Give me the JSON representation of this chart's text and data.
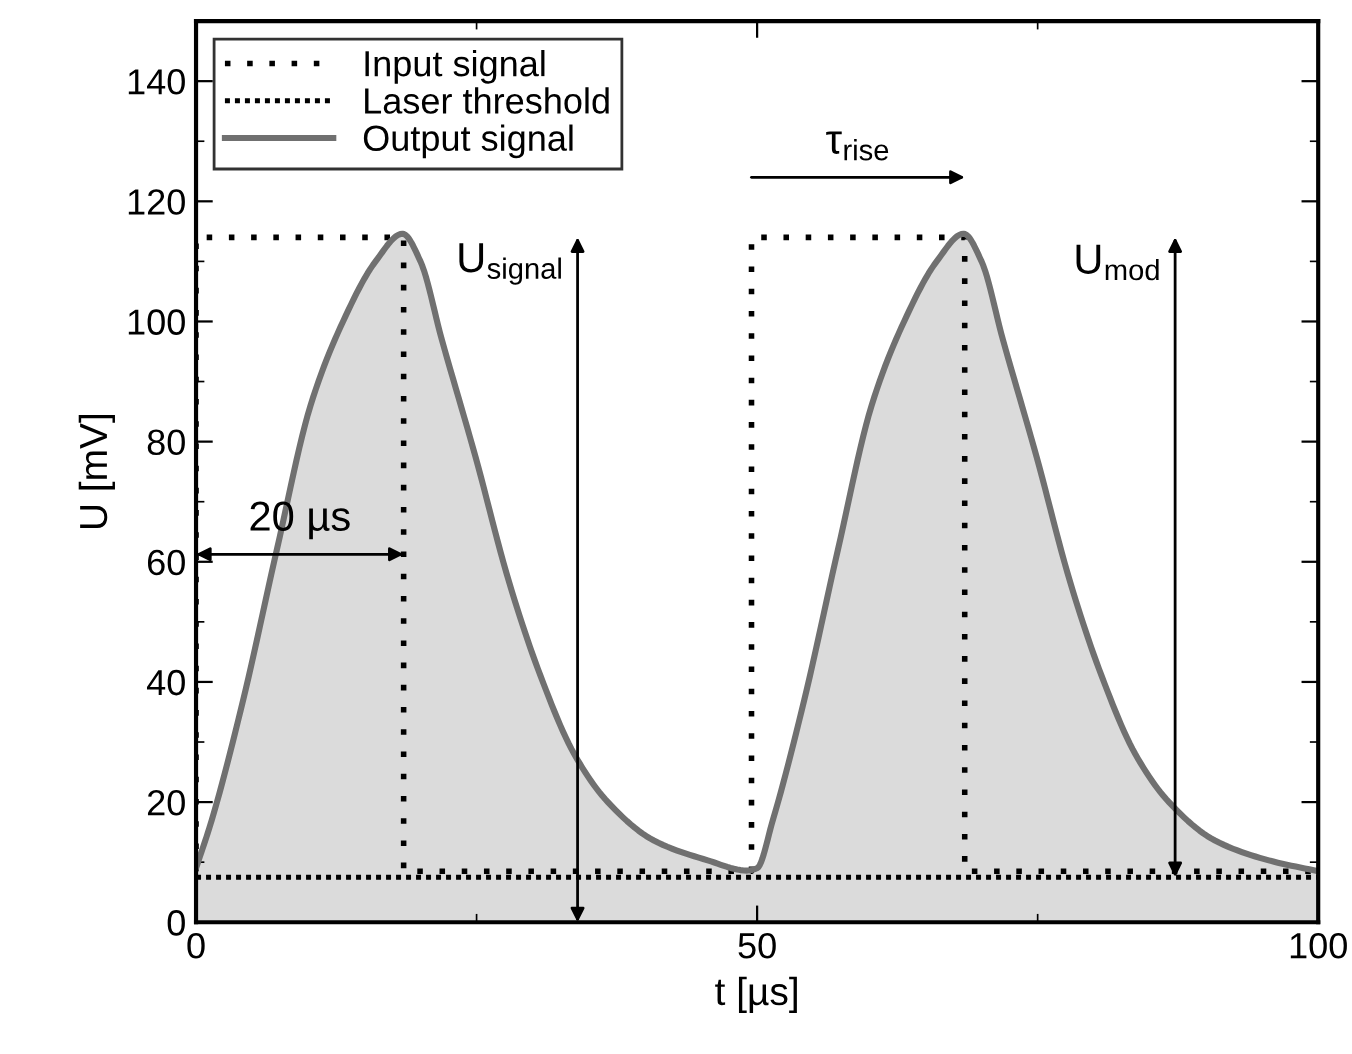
{
  "chart_data": {
    "type": "line",
    "xlabel": "t [µs]",
    "ylabel": "U [mV]",
    "xlim": [
      0,
      100
    ],
    "ylim": [
      0,
      150
    ],
    "xticks": [
      0,
      50,
      100
    ],
    "yticks": [
      0,
      20,
      40,
      60,
      80,
      100,
      120,
      140
    ],
    "grid": false,
    "legend": "top left",
    "marker": "none",
    "series": [
      {
        "name": "Input signal",
        "line_style": "dotted",
        "color": "#000000",
        "x": [
          0,
          0,
          18.5,
          18.5,
          49.5,
          49.5,
          68.5,
          68.5,
          100
        ],
        "values": [
          8.5,
          114,
          114,
          8.5,
          8.5,
          114,
          114,
          8.5,
          8.5
        ]
      },
      {
        "name": "Output signal",
        "type": "area",
        "line_style": "solid",
        "color": "#707070",
        "x": [
          0,
          1.4,
          4.2,
          7.2,
          10.2,
          13.1,
          16,
          18.4,
          20,
          21.9,
          24.9,
          27.9,
          30.7,
          33.7,
          36.7,
          40.8,
          45.6,
          49.1,
          50,
          51.4,
          54.2,
          57.2,
          60.2,
          63.1,
          66,
          68.4,
          70,
          71.9,
          74.9,
          77.9,
          80.7,
          83.7,
          86.7,
          90.8,
          95.6,
          100
        ],
        "values": [
          9,
          17,
          37,
          62,
          86,
          100,
          110,
          114.6,
          110,
          97,
          77.5,
          56.6,
          41,
          28,
          20,
          13.6,
          10.3,
          8.6,
          9,
          17,
          37,
          62,
          86,
          100,
          110,
          114.6,
          110,
          97,
          77.5,
          56.6,
          41,
          28,
          20,
          13.6,
          10.3,
          8.5
        ]
      }
    ],
    "ref_lines": [
      {
        "axis": "y",
        "value": 7.5,
        "label": "Laser threshold",
        "color": "#000000",
        "line_style": "dotted"
      }
    ],
    "annotations": [
      "20 µs",
      "U$_{signal}$",
      "τ$_{rise}$",
      "U$_{mod}$"
    ]
  }
}
